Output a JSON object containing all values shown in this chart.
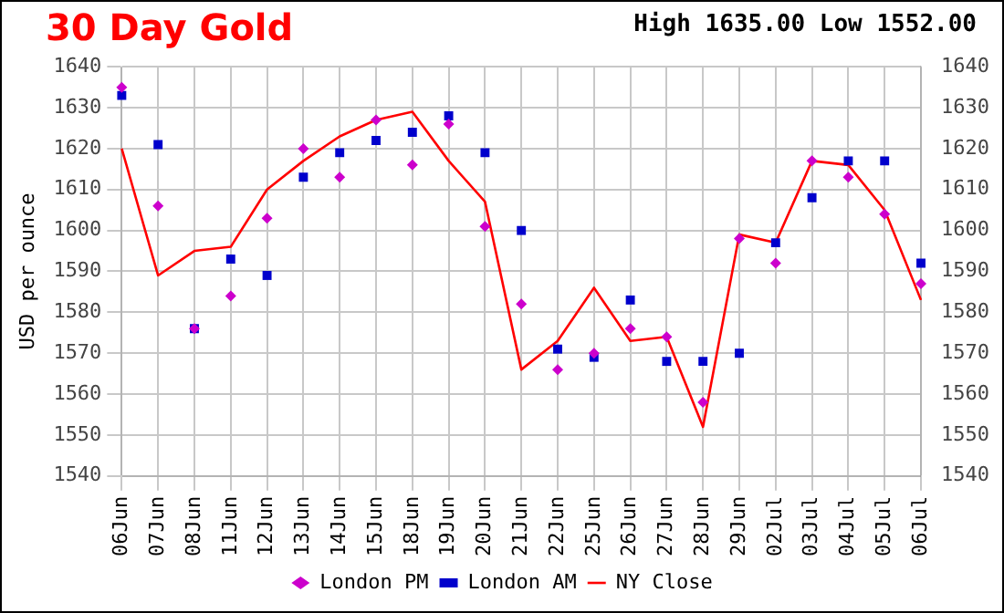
{
  "chart_data": {
    "type": "line",
    "title": "30 Day Gold",
    "subtitle": "High 1635.00 Low 1552.00",
    "ylabel": "USD per ounce",
    "categories": [
      "06Jun",
      "07Jun",
      "08Jun",
      "11Jun",
      "12Jun",
      "13Jun",
      "14Jun",
      "15Jun",
      "18Jun",
      "19Jun",
      "20Jun",
      "21Jun",
      "22Jun",
      "25Jun",
      "26Jun",
      "27Jun",
      "28Jun",
      "29Jun",
      "02Jul",
      "03Jul",
      "04Jul",
      "05Jul",
      "06Jul"
    ],
    "series": [
      {
        "name": "NY Close",
        "marker": "none",
        "color": "#ff0000",
        "values": [
          1620,
          1589,
          1595,
          1596,
          1610,
          1617,
          1623,
          1627,
          1629,
          1617,
          1607,
          1566,
          1573,
          1586,
          1573,
          1574,
          1552,
          1599,
          1597,
          1617,
          1616,
          1605,
          1583
        ]
      },
      {
        "name": "London AM",
        "type": "scatter",
        "marker": "square",
        "color": "#0000cc",
        "values": [
          1633,
          1621,
          1576,
          1593,
          1589,
          1613,
          1619,
          1622,
          1624,
          1628,
          1619,
          1600,
          1571,
          1569,
          1583,
          1568,
          1568,
          1570,
          1597,
          1608,
          1617,
          1617,
          1592
        ]
      },
      {
        "name": "London PM",
        "type": "scatter",
        "marker": "diamond",
        "color": "#cc00cc",
        "values": [
          1635,
          1606,
          1576,
          1584,
          1603,
          1620,
          1613,
          1627,
          1616,
          1626,
          1601,
          1582,
          1566,
          1570,
          1576,
          1574,
          1558,
          1598,
          1592,
          1617,
          1613,
          1604,
          1587
        ]
      }
    ],
    "ylim": [
      1540,
      1640
    ],
    "yticks": [
      1540,
      1550,
      1560,
      1570,
      1580,
      1590,
      1600,
      1610,
      1620,
      1630,
      1640
    ],
    "y2lim": [
      1540,
      1640
    ],
    "y2ticks": [
      1540,
      1550,
      1560,
      1570,
      1580,
      1590,
      1600,
      1610,
      1620,
      1630,
      1640
    ],
    "grid": true,
    "legend": "bottom"
  }
}
